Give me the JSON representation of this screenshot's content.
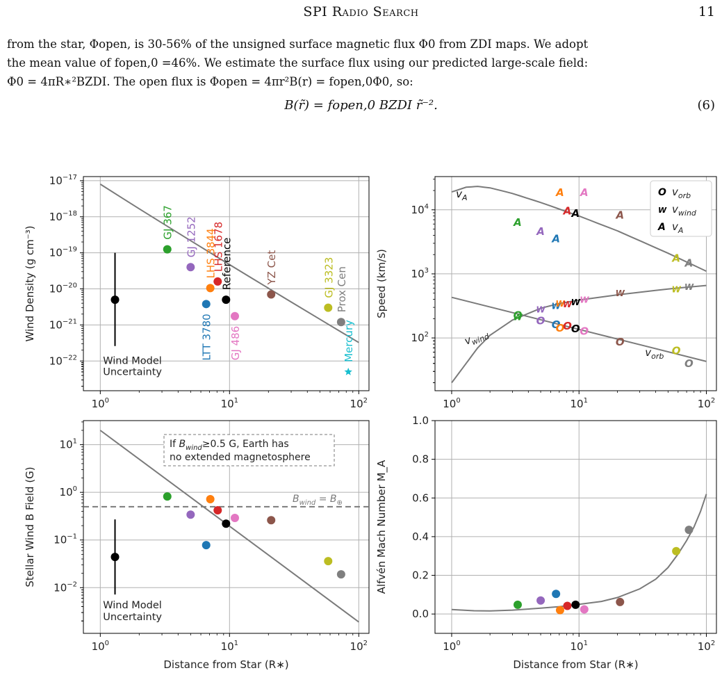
{
  "header": {
    "running_title": "SPI Radio Search",
    "page_number": "11"
  },
  "paragraph": {
    "lines": [
      "from the star, Φopen, is 30-56% of the unsigned surface magnetic flux Φ0 from ZDI maps. We adopt",
      "the mean value of fopen,0 =46%. We estimate the surface flux using our predicted large-scale field:",
      "Φ0 = 4πR∗²BZDI. The open flux is Φopen = 4πr²B(r) = fopen,0Φ0, so:"
    ]
  },
  "equation": {
    "body": "B(r̃) = fopen,0 BZDI r̃⁻².",
    "number": "(6)"
  },
  "chart_data": [
    {
      "type": "scatter",
      "panel": "top-left",
      "xlabel": "",
      "ylabel": "Wind Density (g cm⁻³)",
      "xscale": "log",
      "yscale": "log",
      "xlim": [
        0.74,
        120
      ],
      "ylim": [
        1.5e-23,
        1.3e-17
      ],
      "yticks": [
        "10⁻¹⁷",
        "10⁻¹⁸",
        "10⁻¹⁹",
        "10⁻²⁰",
        "10⁻²¹",
        "10⁻²²"
      ],
      "model_line": {
        "x": [
          1,
          100
        ],
        "y": [
          8e-18,
          2.8e-22
        ]
      },
      "points": [
        {
          "name": "GJ 367",
          "x": 3.3,
          "y": 1.25e-19,
          "color": "#2ca02c"
        },
        {
          "name": "GJ 1252",
          "x": 5.0,
          "y": 4e-20,
          "color": "#9467bd"
        },
        {
          "name": "LHS 3844",
          "x": 7.1,
          "y": 1.05e-20,
          "color": "#ff7f0e"
        },
        {
          "name": "LHS 1678",
          "x": 8.1,
          "y": 1.6e-20,
          "color": "#d62728"
        },
        {
          "name": "Reference",
          "x": 9.4,
          "y": 5e-21,
          "color": "#000000"
        },
        {
          "name": "LTT 3780",
          "x": 6.6,
          "y": 3.8e-21,
          "color": "#1f77b4"
        },
        {
          "name": "GJ 486",
          "x": 11.0,
          "y": 1.75e-21,
          "color": "#e377c2"
        },
        {
          "name": "YZ Cet",
          "x": 21.0,
          "y": 7e-21,
          "color": "#8c564b"
        },
        {
          "name": "GJ 3323",
          "x": 58.0,
          "y": 3e-21,
          "color": "#bcbd22"
        },
        {
          "name": "Prox Cen",
          "x": 73.0,
          "y": 1.2e-21,
          "color": "#7f7f7f"
        },
        {
          "name": "Mercury",
          "x": 83.0,
          "y": 5e-23,
          "color": "#17becf",
          "marker": "star"
        }
      ],
      "uncertainty": {
        "label": "Wind Model Uncertainty",
        "x": 1.3,
        "y": 5e-21,
        "ylow": 2.6e-22,
        "yhigh": 1e-19
      }
    },
    {
      "type": "line",
      "panel": "top-right",
      "ylabel": "Speed (km/s)",
      "xscale": "log",
      "yscale": "log",
      "xlim": [
        0.74,
        120
      ],
      "ylim": [
        15,
        33000
      ],
      "legend": {
        "placement": "top-right",
        "entries": [
          {
            "glyph": "O",
            "label": "v_orb"
          },
          {
            "glyph": "W",
            "label": "v_wind"
          },
          {
            "glyph": "A",
            "label": "v_A"
          }
        ]
      },
      "curve_labels": [
        "v_A",
        "v_wind",
        "v_orb"
      ],
      "series": [
        {
          "name": "v_A",
          "x": [
            1,
            1.3,
            1.6,
            2,
            3,
            5,
            10,
            20,
            50,
            100
          ],
          "y": [
            19000,
            22500,
            23200,
            22000,
            18000,
            13000,
            8000,
            4700,
            2100,
            1100
          ]
        },
        {
          "name": "v_wind",
          "x": [
            1,
            1.3,
            1.6,
            2,
            3,
            5,
            7,
            10,
            20,
            50,
            100
          ],
          "y": [
            20,
            40,
            70,
            110,
            190,
            290,
            345,
            390,
            470,
            580,
            660
          ]
        },
        {
          "name": "v_orb",
          "x": [
            1,
            100
          ],
          "y": [
            430,
            43
          ]
        }
      ],
      "planets": [
        {
          "name": "GJ 367",
          "x": 3.3,
          "va": 6500,
          "vw": 220,
          "vo": 230,
          "color": "#2ca02c"
        },
        {
          "name": "GJ 1252",
          "x": 5.0,
          "va": 4700,
          "vw": 290,
          "vo": 190,
          "color": "#9467bd"
        },
        {
          "name": "LTT 3780",
          "x": 6.6,
          "va": 3600,
          "vw": 330,
          "vo": 165,
          "color": "#1f77b4"
        },
        {
          "name": "LHS 3844",
          "x": 7.1,
          "va": 19000,
          "vw": 360,
          "vo": 145,
          "color": "#ff7f0e"
        },
        {
          "name": "LHS 1678",
          "x": 8.1,
          "va": 9800,
          "vw": 350,
          "vo": 158,
          "color": "#d62728"
        },
        {
          "name": "Reference",
          "x": 9.4,
          "va": 9000,
          "vw": 375,
          "vo": 142,
          "color": "#000000"
        },
        {
          "name": "GJ 486",
          "x": 11.0,
          "va": 19000,
          "vw": 410,
          "vo": 130,
          "color": "#e377c2"
        },
        {
          "name": "YZ Cet",
          "x": 21.0,
          "va": 8500,
          "vw": 520,
          "vo": 88,
          "color": "#8c564b"
        },
        {
          "name": "GJ 3323",
          "x": 58.0,
          "va": 1800,
          "vw": 600,
          "vo": 65,
          "color": "#bcbd22"
        },
        {
          "name": "Prox Cen",
          "x": 73.0,
          "va": 1500,
          "vw": 650,
          "vo": 41,
          "color": "#7f7f7f"
        }
      ]
    },
    {
      "type": "scatter",
      "panel": "bottom-left",
      "xlabel": "Distance from Star (R∗)",
      "ylabel": "Stellar Wind B Field (G)",
      "xscale": "log",
      "yscale": "log",
      "xlim": [
        0.74,
        120
      ],
      "ylim": [
        0.0011,
        32
      ],
      "model_line": {
        "x": [
          1,
          100
        ],
        "y": [
          20,
          0.0019
        ]
      },
      "threshold": {
        "y": 0.5,
        "label": "B_wind = B_⊕"
      },
      "annotation": [
        "If B_wind≥0.5 G, Earth has",
        "no extended magnetosphere"
      ],
      "points": [
        {
          "name": "GJ 367",
          "x": 3.3,
          "y": 0.82,
          "color": "#2ca02c"
        },
        {
          "name": "GJ 1252",
          "x": 5.0,
          "y": 0.34,
          "color": "#9467bd"
        },
        {
          "name": "LTT 3780",
          "x": 6.6,
          "y": 0.078,
          "color": "#1f77b4"
        },
        {
          "name": "LHS 3844",
          "x": 7.1,
          "y": 0.72,
          "color": "#ff7f0e"
        },
        {
          "name": "LHS 1678",
          "x": 8.1,
          "y": 0.42,
          "color": "#d62728"
        },
        {
          "name": "Reference",
          "x": 9.4,
          "y": 0.22,
          "color": "#000000"
        },
        {
          "name": "GJ 486",
          "x": 11.0,
          "y": 0.29,
          "color": "#e377c2"
        },
        {
          "name": "YZ Cet",
          "x": 21.0,
          "y": 0.26,
          "color": "#8c564b"
        },
        {
          "name": "GJ 3323",
          "x": 58.0,
          "y": 0.036,
          "color": "#bcbd22"
        },
        {
          "name": "Prox Cen",
          "x": 73.0,
          "y": 0.019,
          "color": "#7f7f7f"
        }
      ],
      "uncertainty": {
        "label": "Wind Model Uncertainty",
        "x": 1.3,
        "y": 0.044,
        "ylow": 0.0072,
        "yhigh": 0.27
      }
    },
    {
      "type": "scatter",
      "panel": "bottom-right",
      "xlabel": "Distance from Star (R∗)",
      "ylabel": "Alfvén Mach Number M_A",
      "xscale": "log",
      "yscale": "linear",
      "xlim": [
        0.74,
        120
      ],
      "ylim": [
        -0.1,
        1.0
      ],
      "yticks": [
        0.0,
        0.2,
        0.4,
        0.6,
        0.8,
        1.0
      ],
      "model_line": {
        "x": [
          1,
          1.5,
          2,
          3,
          5,
          7,
          10,
          15,
          20,
          30,
          40,
          50,
          60,
          70,
          80,
          90,
          100
        ],
        "y": [
          0.023,
          0.017,
          0.016,
          0.02,
          0.03,
          0.038,
          0.05,
          0.065,
          0.085,
          0.13,
          0.18,
          0.24,
          0.31,
          0.38,
          0.45,
          0.53,
          0.62
        ]
      },
      "points": [
        {
          "name": "GJ 367",
          "x": 3.3,
          "y": 0.048,
          "color": "#2ca02c"
        },
        {
          "name": "GJ 1252",
          "x": 5.0,
          "y": 0.07,
          "color": "#9467bd"
        },
        {
          "name": "LTT 3780",
          "x": 6.6,
          "y": 0.104,
          "color": "#1f77b4"
        },
        {
          "name": "LHS 3844",
          "x": 7.1,
          "y": 0.02,
          "color": "#ff7f0e"
        },
        {
          "name": "LHS 1678",
          "x": 8.1,
          "y": 0.042,
          "color": "#d62728"
        },
        {
          "name": "Reference",
          "x": 9.4,
          "y": 0.048,
          "color": "#000000"
        },
        {
          "name": "GJ 486",
          "x": 11.0,
          "y": 0.024,
          "color": "#e377c2"
        },
        {
          "name": "YZ Cet",
          "x": 21.0,
          "y": 0.062,
          "color": "#8c564b"
        },
        {
          "name": "GJ 3323",
          "x": 58.0,
          "y": 0.325,
          "color": "#bcbd22"
        },
        {
          "name": "Prox Cen",
          "x": 73.0,
          "y": 0.435,
          "color": "#7f7f7f"
        }
      ]
    }
  ]
}
